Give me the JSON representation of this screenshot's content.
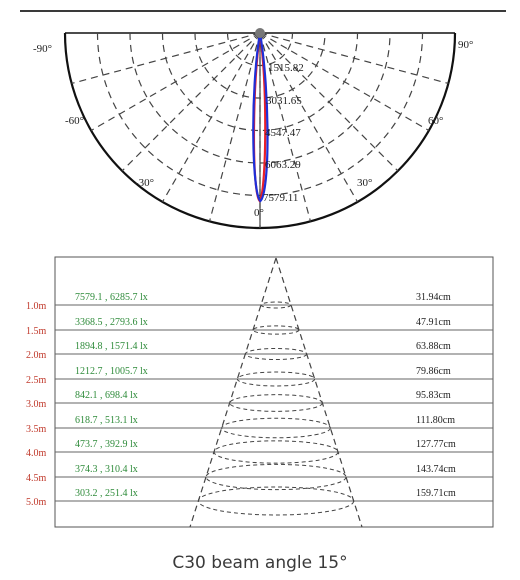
{
  "polar": {
    "angle_labels": {
      "left_90": "-90°",
      "right_90": "90°",
      "left_60": "-60°",
      "right_60": "60°",
      "left_30": "-30°",
      "right_30": "30°",
      "zero": "0°"
    },
    "radial_values": [
      "1515.82",
      "3031.65",
      "4547.47",
      "6063.29",
      "7579.11"
    ],
    "curve_colors": {
      "c0": "#e8202a",
      "c90": "#1e2fd8"
    }
  },
  "illuminance_table": {
    "rows": [
      {
        "distance": "1.0m",
        "lux": "7579.1 , 6285.7 lx",
        "diameter": "31.94cm"
      },
      {
        "distance": "1.5m",
        "lux": "3368.5 , 2793.6 lx",
        "diameter": "47.91cm"
      },
      {
        "distance": "2.0m",
        "lux": "1894.8 , 1571.4 lx",
        "diameter": "63.88cm"
      },
      {
        "distance": "2.5m",
        "lux": "1212.7 , 1005.7 lx",
        "diameter": "79.86cm"
      },
      {
        "distance": "3.0m",
        "lux": "842.1 , 698.4 lx",
        "diameter": "95.83cm"
      },
      {
        "distance": "3.5m",
        "lux": "618.7 , 513.1 lx",
        "diameter": "111.80cm"
      },
      {
        "distance": "4.0m",
        "lux": "473.7 , 392.9 lx",
        "diameter": "127.77cm"
      },
      {
        "distance": "4.5m",
        "lux": "374.3 , 310.4 lx",
        "diameter": "143.74cm"
      },
      {
        "distance": "5.0m",
        "lux": "303.2 , 251.4 lx",
        "diameter": "159.71cm"
      }
    ],
    "colors": {
      "distance": "#c0392b",
      "lux": "#2e8b3a",
      "diameter": "#222222"
    }
  },
  "caption": "C30 beam angle 15°"
}
